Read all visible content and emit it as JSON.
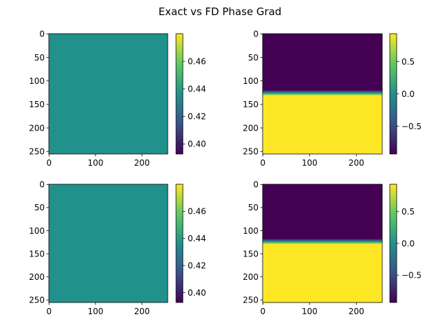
{
  "figure": {
    "suptitle": "Exact vs FD Phase Grad"
  },
  "colormap": {
    "name": "viridis",
    "stops": [
      "#440154",
      "#3b528b",
      "#21918c",
      "#5ec962",
      "#fde725"
    ]
  },
  "chart_data": [
    {
      "type": "heatmap",
      "position": "top-left",
      "image_shape": [
        256,
        256
      ],
      "pattern": "uniform",
      "fill_value": 0.4363,
      "x_ticks": [
        "0",
        "100",
        "200"
      ],
      "x_tick_values": [
        0,
        100,
        200
      ],
      "y_ticks": [
        "0",
        "50",
        "100",
        "150",
        "200",
        "250"
      ],
      "y_tick_values": [
        0,
        50,
        100,
        150,
        200,
        250
      ],
      "colorbar": {
        "range": [
          0.3927,
          0.48
        ],
        "ticks": [
          "0.40",
          "0.42",
          "0.44",
          "0.46"
        ],
        "tick_values": [
          0.4,
          0.42,
          0.44,
          0.46
        ]
      }
    },
    {
      "type": "heatmap",
      "position": "top-right",
      "image_shape": [
        256,
        256
      ],
      "pattern": "horizontal-step",
      "top_value": -0.93,
      "bottom_value": 0.93,
      "transition_rows": [
        120,
        132
      ],
      "x_ticks": [
        "0",
        "100",
        "200"
      ],
      "x_tick_values": [
        0,
        100,
        200
      ],
      "y_ticks": [
        "0",
        "50",
        "100",
        "150",
        "200",
        "250"
      ],
      "y_tick_values": [
        0,
        50,
        100,
        150,
        200,
        250
      ],
      "colorbar": {
        "range": [
          -0.93,
          0.93
        ],
        "ticks": [
          "0.5",
          "0.0",
          "−0.5"
        ],
        "tick_values": [
          0.5,
          0.0,
          -0.5
        ]
      }
    },
    {
      "type": "heatmap",
      "position": "bottom-left",
      "image_shape": [
        256,
        256
      ],
      "pattern": "uniform",
      "fill_value": 0.4363,
      "x_ticks": [
        "0",
        "100",
        "200"
      ],
      "x_tick_values": [
        0,
        100,
        200
      ],
      "y_ticks": [
        "0",
        "50",
        "100",
        "150",
        "200",
        "250"
      ],
      "y_tick_values": [
        0,
        50,
        100,
        150,
        200,
        250
      ],
      "colorbar": {
        "range": [
          0.3927,
          0.48
        ],
        "ticks": [
          "0.40",
          "0.42",
          "0.44",
          "0.46"
        ],
        "tick_values": [
          0.4,
          0.42,
          0.44,
          0.46
        ]
      }
    },
    {
      "type": "heatmap",
      "position": "bottom-right",
      "image_shape": [
        256,
        256
      ],
      "pattern": "horizontal-step",
      "top_value": -0.93,
      "bottom_value": 0.93,
      "transition_rows": [
        118,
        130
      ],
      "x_ticks": [
        "0",
        "100",
        "200"
      ],
      "x_tick_values": [
        0,
        100,
        200
      ],
      "y_ticks": [
        "0",
        "50",
        "100",
        "150",
        "200",
        "250"
      ],
      "y_tick_values": [
        0,
        50,
        100,
        150,
        200,
        250
      ],
      "colorbar": {
        "range": [
          -0.93,
          0.93
        ],
        "ticks": [
          "0.5",
          "0.0",
          "−0.5"
        ],
        "tick_values": [
          0.5,
          0.0,
          -0.5
        ]
      }
    }
  ]
}
